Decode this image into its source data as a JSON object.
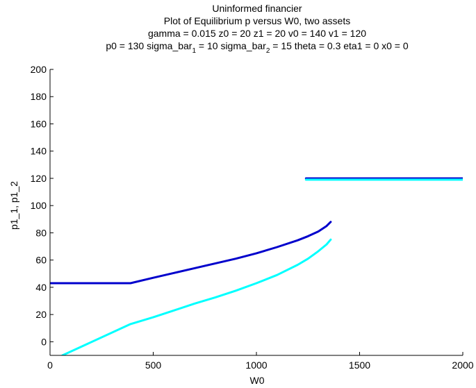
{
  "chart_data": {
    "type": "line",
    "title_lines": [
      "Uninformed financier",
      "Plot of Equilibrium p versus W0, two assets",
      "gamma = 0.015  z0 = 20  z1 = 20  v0 = 140  v1 = 120"
    ],
    "title_line4": {
      "part1": "p0 = 130  sigma_bar",
      "sub1": "1",
      "part2": " = 10  sigma_bar",
      "sub2": "2",
      "part3": " = 15  theta = 0.3  eta1 = 0 x0 = 0"
    },
    "xlabel": "W0",
    "ylabel": "p1_1, p1_2",
    "xlim": [
      0,
      2000
    ],
    "ylim": [
      -10,
      200
    ],
    "xticks": [
      0,
      500,
      1000,
      1500,
      2000
    ],
    "yticks": [
      0,
      20,
      40,
      60,
      80,
      100,
      120,
      140,
      160,
      180,
      200
    ],
    "grid": false,
    "series": [
      {
        "color": "#0000cc",
        "x": [
          0,
          390,
          500,
          600,
          700,
          800,
          900,
          1000,
          1100,
          1200,
          1250,
          1300,
          1340,
          1360
        ],
        "y": [
          43,
          43,
          47,
          50.5,
          54,
          57.5,
          61,
          65,
          69.5,
          74.5,
          77.5,
          81,
          85,
          88
        ]
      },
      {
        "color": "#00ffff",
        "x": [
          60,
          390,
          500,
          600,
          700,
          800,
          900,
          1000,
          1100,
          1200,
          1250,
          1300,
          1340,
          1360
        ],
        "y": [
          -10,
          13,
          18,
          23,
          28,
          32.5,
          37.5,
          43,
          49,
          56.5,
          61,
          66.5,
          71.5,
          75
        ]
      },
      {
        "color": "#0000cc",
        "x": [
          1240,
          2000
        ],
        "y": [
          120,
          120
        ]
      },
      {
        "color": "#00ffff",
        "x": [
          1240,
          2000
        ],
        "y": [
          119,
          119
        ]
      }
    ]
  }
}
